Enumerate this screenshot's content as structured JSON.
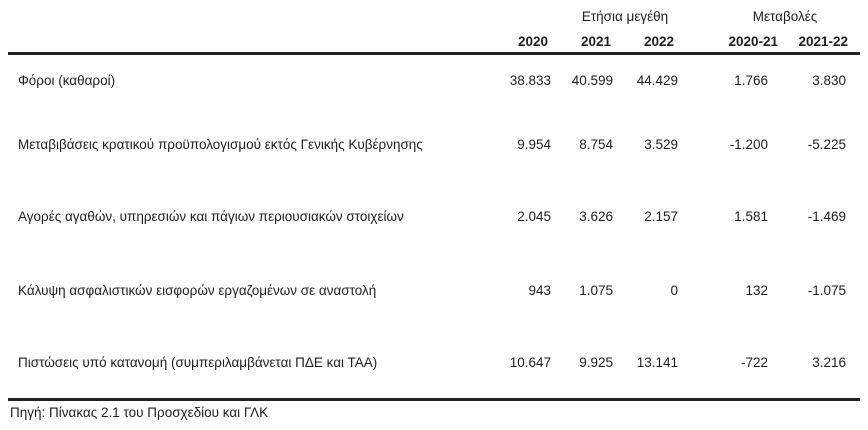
{
  "header": {
    "group_annual": "Ετήσια μεγέθη",
    "group_changes": "Μεταβολές",
    "columns": [
      "2020",
      "2021",
      "2022",
      "2020-21",
      "2021-22"
    ]
  },
  "rows": [
    {
      "label": "Φόροι (καθαροί)",
      "values": [
        "38.833",
        "40.599",
        "44.429",
        "1.766",
        "3.830"
      ]
    },
    {
      "label": "Μεταβιβάσεις κρατικού προϋπολογισμού εκτός Γενικής Κυβέρνησης",
      "values": [
        "9.954",
        "8.754",
        "3.529",
        "-1.200",
        "-5.225"
      ]
    },
    {
      "label": "Αγορές αγαθών, υπηρεσιών και πάγιων περιουσιακών στοιχείων",
      "values": [
        "2.045",
        "3.626",
        "2.157",
        "1.581",
        "-1.469"
      ]
    },
    {
      "label": "Κάλυψη ασφαλιστικών εισφορών εργαζομένων σε αναστολή",
      "values": [
        "943",
        "1.075",
        "0",
        "132",
        "-1.075"
      ]
    },
    {
      "label": "Πιστώσεις υπό κατανομή (συμπεριλαμβάνεται ΠΔΕ και ΤΑΑ)",
      "values": [
        "10.647",
        "9.925",
        "13.141",
        "-722",
        "3.216"
      ]
    }
  ],
  "source": "Πηγή: Πίνακας 2.1 του Προσχεδίου και ΓΛΚ"
}
